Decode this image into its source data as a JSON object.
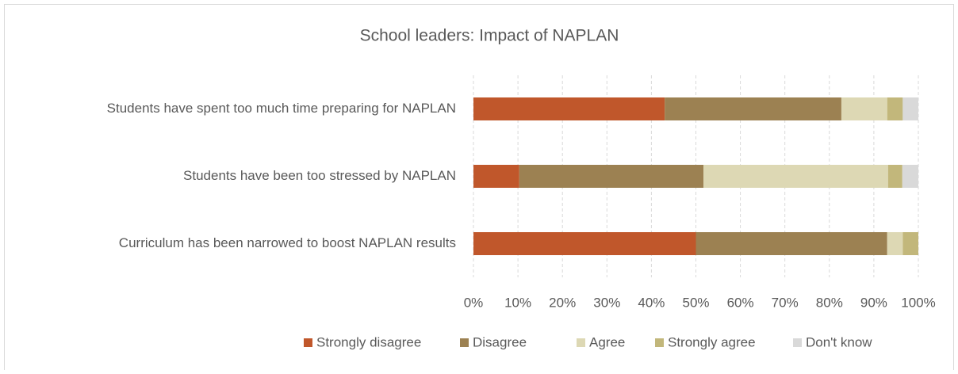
{
  "chart_data": {
    "type": "stacked-bar-horizontal",
    "title": "School leaders: Impact of NAPLAN",
    "categories": [
      "Students have spent too much time preparing for NAPLAN",
      "Students have been too stressed by NAPLAN",
      "Curriculum has been narrowed to boost NAPLAN results"
    ],
    "series": [
      {
        "name": "Strongly disagree",
        "color": "#c0572b",
        "values": [
          43,
          10.3,
          50
        ]
      },
      {
        "name": "Disagree",
        "color": "#9c8152",
        "values": [
          39.7,
          41.4,
          43
        ]
      },
      {
        "name": "Agree",
        "color": "#ddd8b4",
        "values": [
          10.3,
          41.5,
          3.5
        ]
      },
      {
        "name": "Strongly agree",
        "color": "#c2b77b",
        "values": [
          3.5,
          3.2,
          3.5
        ]
      },
      {
        "name": "Don't know",
        "color": "#d9d9d9",
        "values": [
          3.5,
          3.6,
          0
        ]
      }
    ],
    "xlim": [
      0,
      100
    ],
    "xticks": [
      {
        "value": 0,
        "label": "0%"
      },
      {
        "value": 10,
        "label": "10%"
      },
      {
        "value": 20,
        "label": "20%"
      },
      {
        "value": 30,
        "label": "30%"
      },
      {
        "value": 40,
        "label": "40%"
      },
      {
        "value": 50,
        "label": "50%"
      },
      {
        "value": 60,
        "label": "60%"
      },
      {
        "value": 70,
        "label": "70%"
      },
      {
        "value": 80,
        "label": "80%"
      },
      {
        "value": 90,
        "label": "90%"
      },
      {
        "value": 100,
        "label": "100%"
      }
    ],
    "grid": true,
    "legend": "bottom"
  }
}
